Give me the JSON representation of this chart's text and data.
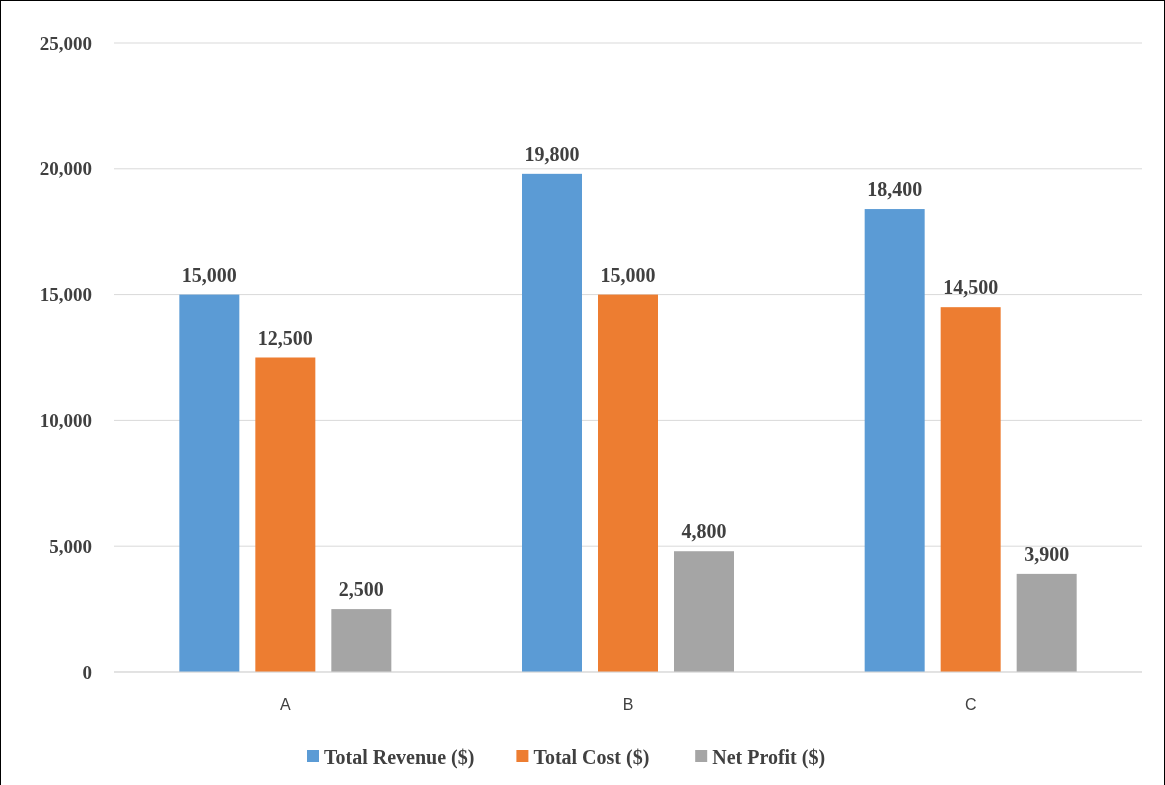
{
  "chart_data": {
    "type": "bar",
    "categories": [
      "A",
      "B",
      "C"
    ],
    "series": [
      {
        "name": "Total Revenue ($)",
        "color": "#5b9bd5",
        "values": [
          15000,
          19800,
          18400
        ],
        "value_labels": [
          "15,000",
          "19,800",
          "18,400"
        ]
      },
      {
        "name": "Total Cost ($)",
        "color": "#ed7d31",
        "values": [
          12500,
          15000,
          14500
        ],
        "value_labels": [
          "12,500",
          "15,000",
          "14,500"
        ]
      },
      {
        "name": "Net Profit ($)",
        "color": "#a5a5a5",
        "values": [
          2500,
          4800,
          3900
        ],
        "value_labels": [
          "2,500",
          "4,800",
          "3,900"
        ]
      }
    ],
    "ylim": [
      0,
      25000
    ],
    "yticks": [
      {
        "value": 0,
        "label": "0"
      },
      {
        "value": 5000,
        "label": "5,000"
      },
      {
        "value": 10000,
        "label": "10,000"
      },
      {
        "value": 15000,
        "label": "15,000"
      },
      {
        "value": 20000,
        "label": "20,000"
      },
      {
        "value": 25000,
        "label": "25,000"
      }
    ],
    "grid": "y",
    "legend": "bottom"
  }
}
